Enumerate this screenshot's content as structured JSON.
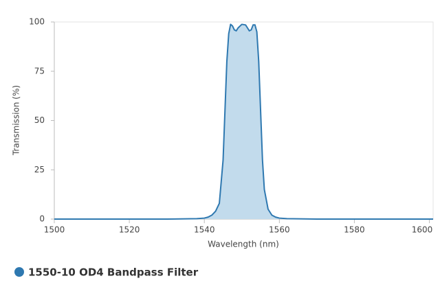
{
  "chart_data": {
    "type": "area",
    "x_label": "Wavelength (nm)",
    "y_label": "Transmission (%)",
    "x": [
      1500,
      1530,
      1538,
      1540,
      1541,
      1542,
      1543,
      1544,
      1545,
      1545.5,
      1546,
      1546.5,
      1547,
      1547.5,
      1548,
      1548.5,
      1549,
      1550,
      1551,
      1551.5,
      1552,
      1552.5,
      1553,
      1553.5,
      1554,
      1554.5,
      1555,
      1555.5,
      1556,
      1557,
      1558,
      1559,
      1560,
      1562,
      1570,
      1601
    ],
    "series": [
      {
        "name": "1550-10 OD4 Bandpass Filter",
        "color": "#2e78b0",
        "fill": "#c2dbec",
        "values": [
          0,
          0,
          0.2,
          0.5,
          1,
          2,
          4,
          8,
          30,
          55,
          80,
          94,
          98.8,
          98,
          96,
          95.5,
          97,
          98.8,
          98.5,
          97,
          95.5,
          96,
          98.5,
          98.5,
          95,
          80,
          55,
          30,
          15,
          5,
          2,
          1,
          0.5,
          0.2,
          0,
          0
        ]
      }
    ],
    "xlim": [
      1500,
      1601
    ],
    "xticks": [
      1500,
      1520,
      1540,
      1560,
      1580,
      1600
    ],
    "ylim": [
      0,
      100
    ],
    "yticks": [
      0,
      25,
      50,
      75,
      100
    ]
  }
}
